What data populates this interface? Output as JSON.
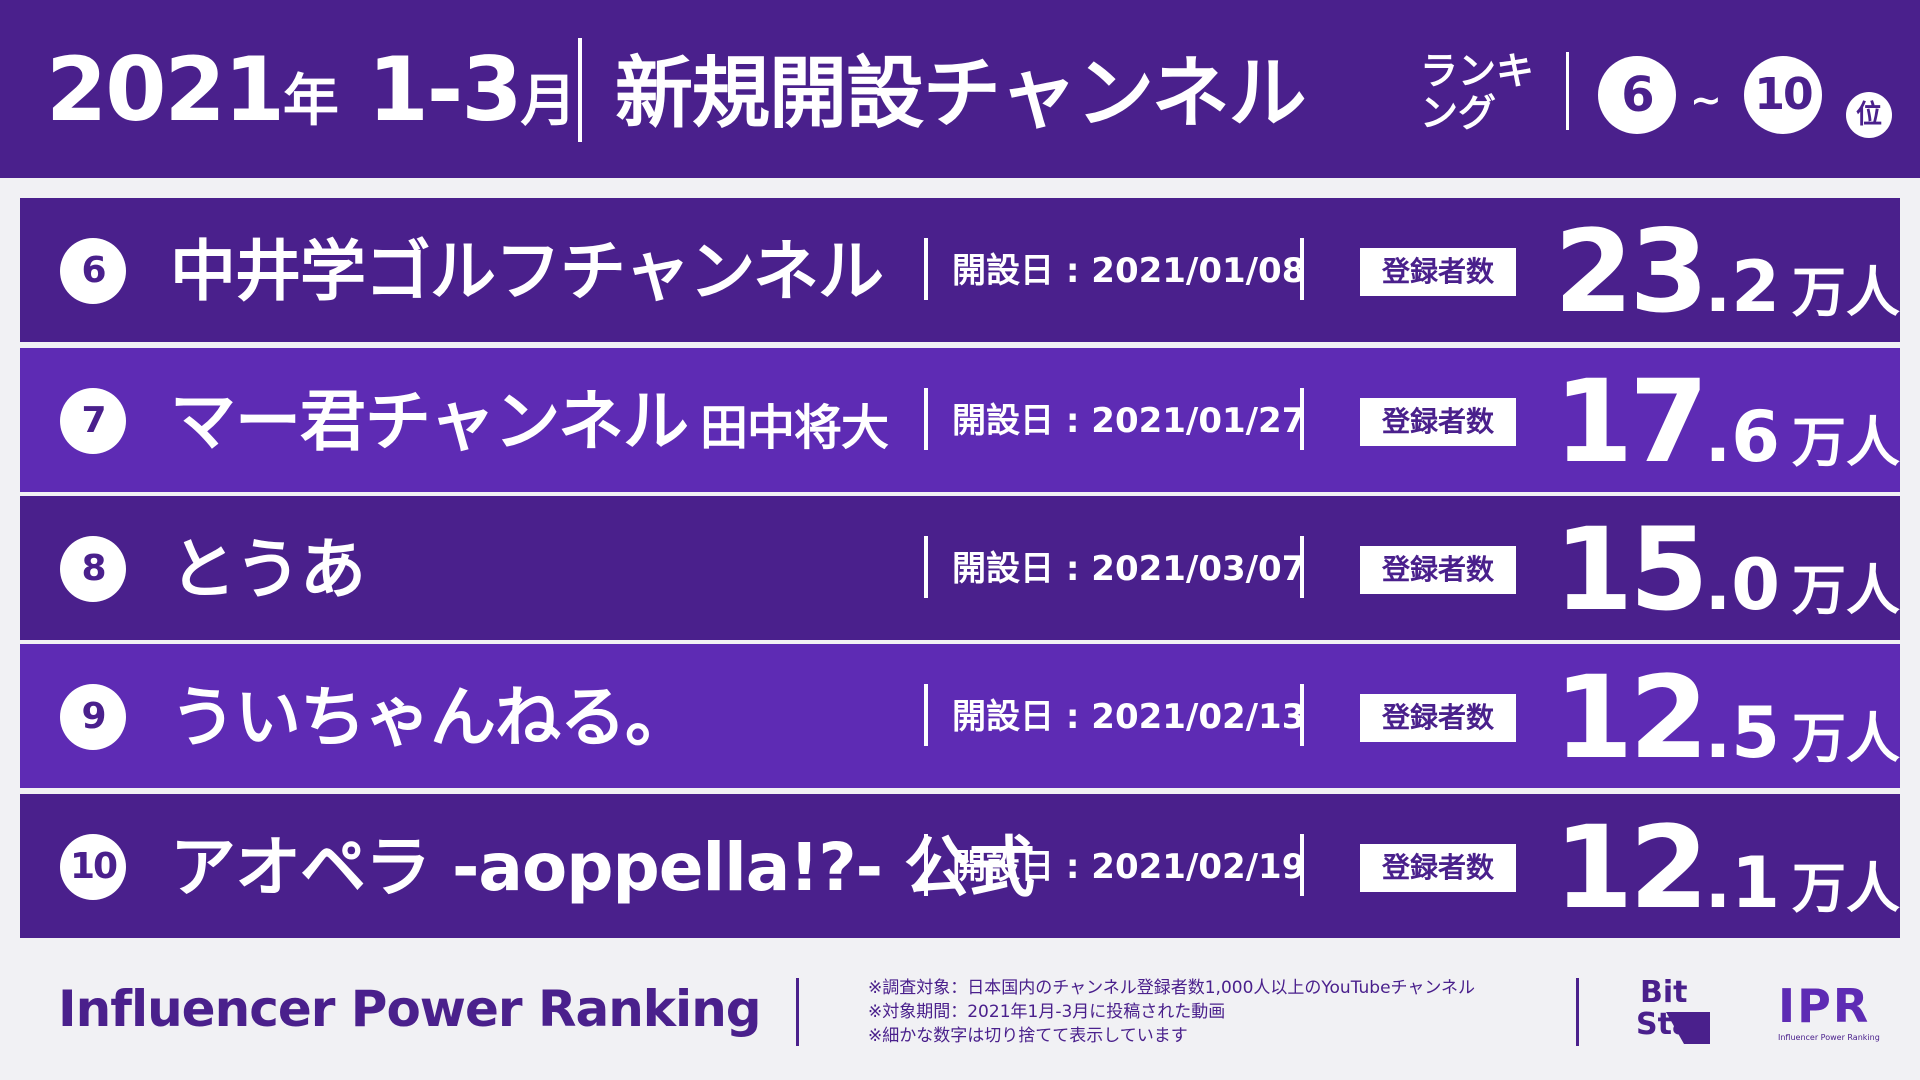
{
  "header": {
    "year": "2021",
    "year_suffix": "年",
    "months": "1-3",
    "months_suffix": "月",
    "title": "新規開設チャンネル",
    "subtitle": "ランキング",
    "range_start": "6",
    "range_sep": "~",
    "range_end": "10",
    "range_suffix": "位"
  },
  "rows": [
    {
      "rank": "6",
      "name": "中井学ゴルフチャンネル",
      "extra": "",
      "open_label": "開設日 :",
      "open_date": "2021/01/08",
      "badge": "登録者数",
      "subs_int": "23",
      "subs_dec": ".2",
      "unit": "万人"
    },
    {
      "rank": "7",
      "name": "マー君チャンネル",
      "extra": "田中将大",
      "open_label": "開設日 :",
      "open_date": "2021/01/27",
      "badge": "登録者数",
      "subs_int": "17",
      "subs_dec": ".6",
      "unit": "万人"
    },
    {
      "rank": "8",
      "name": "とうあ",
      "extra": "",
      "open_label": "開設日 :",
      "open_date": "2021/03/07",
      "badge": "登録者数",
      "subs_int": "15",
      "subs_dec": ".0",
      "unit": "万人"
    },
    {
      "rank": "9",
      "name": "ういちゃんねる。",
      "extra": "",
      "open_label": "開設日 :",
      "open_date": "2021/02/13",
      "badge": "登録者数",
      "subs_int": "12",
      "subs_dec": ".5",
      "unit": "万人"
    },
    {
      "rank": "10",
      "name": "アオペラ -aoppella!?- 公式",
      "extra": "",
      "open_label": "開設日 :",
      "open_date": "2021/02/19",
      "badge": "登録者数",
      "subs_int": "12",
      "subs_dec": ".1",
      "unit": "万人"
    }
  ],
  "footer": {
    "title": "Influencer Power Ranking",
    "notes": [
      "※調査対象：日本国内のチャンネル登録者数1,000人以上のYouTubeチャンネル",
      "※対象期間：2021年1月-3月に投稿された動画",
      "※細かな数字は切り捨てて表示しています"
    ],
    "logo_bitstar_line1": "Bit",
    "logo_bitstar_line2": "Star",
    "logo_ipr": "IPR",
    "logo_ipr_sub": "Influencer Power Ranking"
  },
  "colors": {
    "primary": "#4a208c",
    "row_alt": "#5e2bb4",
    "background": "#f1f1f4",
    "text_light": "#ffffff"
  }
}
